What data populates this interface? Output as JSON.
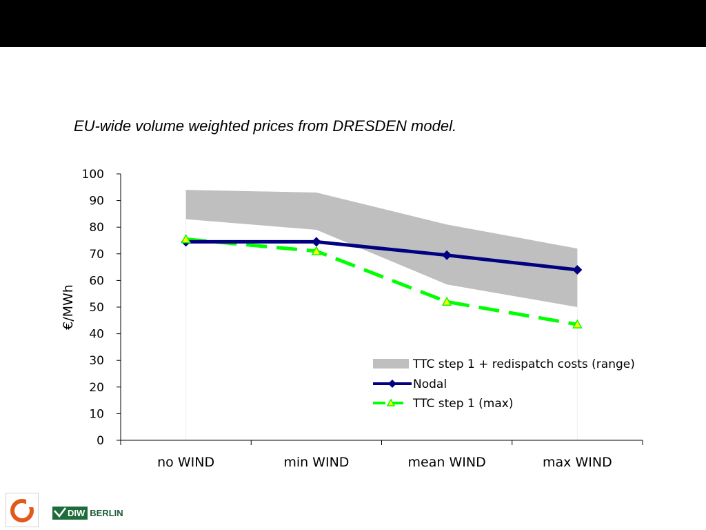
{
  "slide": {
    "caption": "EU-wide volume weighted prices from DRESDEN model.",
    "footer": {
      "logo_left_icon": "ring-logo-icon",
      "diw_text": "DIW",
      "berlin_text": "BERLIN"
    }
  },
  "colors": {
    "top_bar": "#000000",
    "range_fill": "#bfbfbf",
    "nodal": "#000080",
    "ttc": "#00ff00",
    "ttc_marker_fill": "#ffff00"
  },
  "chart_data": {
    "type": "line",
    "ylabel": "€/MWh",
    "xlabel": "",
    "ylim": [
      0,
      100
    ],
    "yticks": [
      0,
      10,
      20,
      30,
      40,
      50,
      60,
      70,
      80,
      90,
      100
    ],
    "categories": [
      "no WIND",
      "min WIND",
      "mean WIND",
      "max WIND"
    ],
    "grid": false,
    "legend_position": "bottom-right",
    "range": {
      "name": "TTC step 1 + redispatch costs (range)",
      "low": [
        83,
        79,
        58.5,
        50
      ],
      "high": [
        94,
        93,
        81,
        72
      ]
    },
    "series": [
      {
        "name": "Nodal",
        "values": [
          74.5,
          74.5,
          69.5,
          64
        ],
        "style": "solid",
        "marker": "diamond"
      },
      {
        "name": "TTC step 1 (max)",
        "values": [
          75.5,
          71,
          52,
          43.5
        ],
        "style": "dashed",
        "marker": "triangle"
      }
    ]
  }
}
